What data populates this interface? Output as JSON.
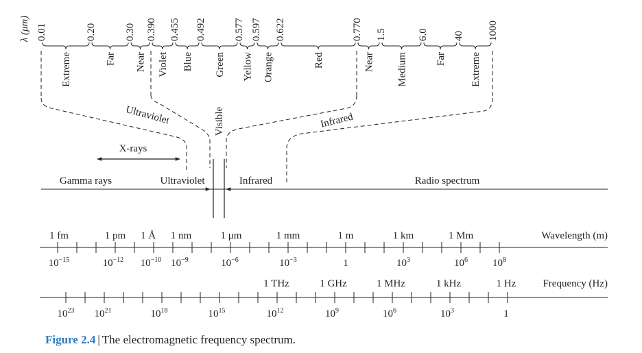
{
  "wavelength_axis_label": "λ (μm)",
  "band_ticks": [
    "0.01",
    "0.20",
    "0.30",
    "0.390",
    "0.455",
    "0.492",
    "0.577",
    "0.597",
    "0.622",
    "0.770",
    "1.5",
    "6.0",
    "40",
    "1000"
  ],
  "sub_bands": [
    "Extreme",
    "Far",
    "Near",
    "Violet",
    "Blue",
    "Green",
    "Yellow",
    "Orange",
    "Red",
    "Near",
    "Medium",
    "Far",
    "Extreme"
  ],
  "group_labels": {
    "ultraviolet": "Ultraviolet",
    "visible": "Visible",
    "infrared": "Infrared"
  },
  "regions": {
    "xrays": "X-rays",
    "gamma": "Gamma rays",
    "ultraviolet": "Ultraviolet",
    "infrared": "Infrared",
    "radio": "Radio spectrum"
  },
  "wavelength_scale": {
    "title": "Wavelength (m)",
    "units": [
      "1 fm",
      "1 pm",
      "1 Å",
      "1 nm",
      "1 μm",
      "1 mm",
      "1 m",
      "1 km",
      "1 Mm"
    ],
    "powers": [
      {
        "base": "10",
        "exp": "−15"
      },
      {
        "base": "10",
        "exp": "−12"
      },
      {
        "base": "10",
        "exp": "−10"
      },
      {
        "base": "10",
        "exp": "−9"
      },
      {
        "base": "10",
        "exp": "−6"
      },
      {
        "base": "10",
        "exp": "−3"
      },
      {
        "base": "1",
        "exp": ""
      },
      {
        "base": "10",
        "exp": "3"
      },
      {
        "base": "10",
        "exp": "6"
      },
      {
        "base": "10",
        "exp": "8"
      }
    ]
  },
  "frequency_scale": {
    "title": "Frequency (Hz)",
    "units": [
      "1 THz",
      "1 GHz",
      "1 MHz",
      "1 kHz",
      "1 Hz"
    ],
    "powers": [
      {
        "base": "10",
        "exp": "23"
      },
      {
        "base": "10",
        "exp": "21"
      },
      {
        "base": "10",
        "exp": "18"
      },
      {
        "base": "10",
        "exp": "15"
      },
      {
        "base": "10",
        "exp": "12"
      },
      {
        "base": "10",
        "exp": "9"
      },
      {
        "base": "10",
        "exp": "6"
      },
      {
        "base": "10",
        "exp": "3"
      },
      {
        "base": "1",
        "exp": ""
      }
    ]
  },
  "caption": {
    "label": "Figure 2.4",
    "separator": "|",
    "text": "The electromagnetic frequency spectrum."
  },
  "colors": {
    "ink": "#231f20",
    "caption_accent": "#2e7bbf"
  }
}
